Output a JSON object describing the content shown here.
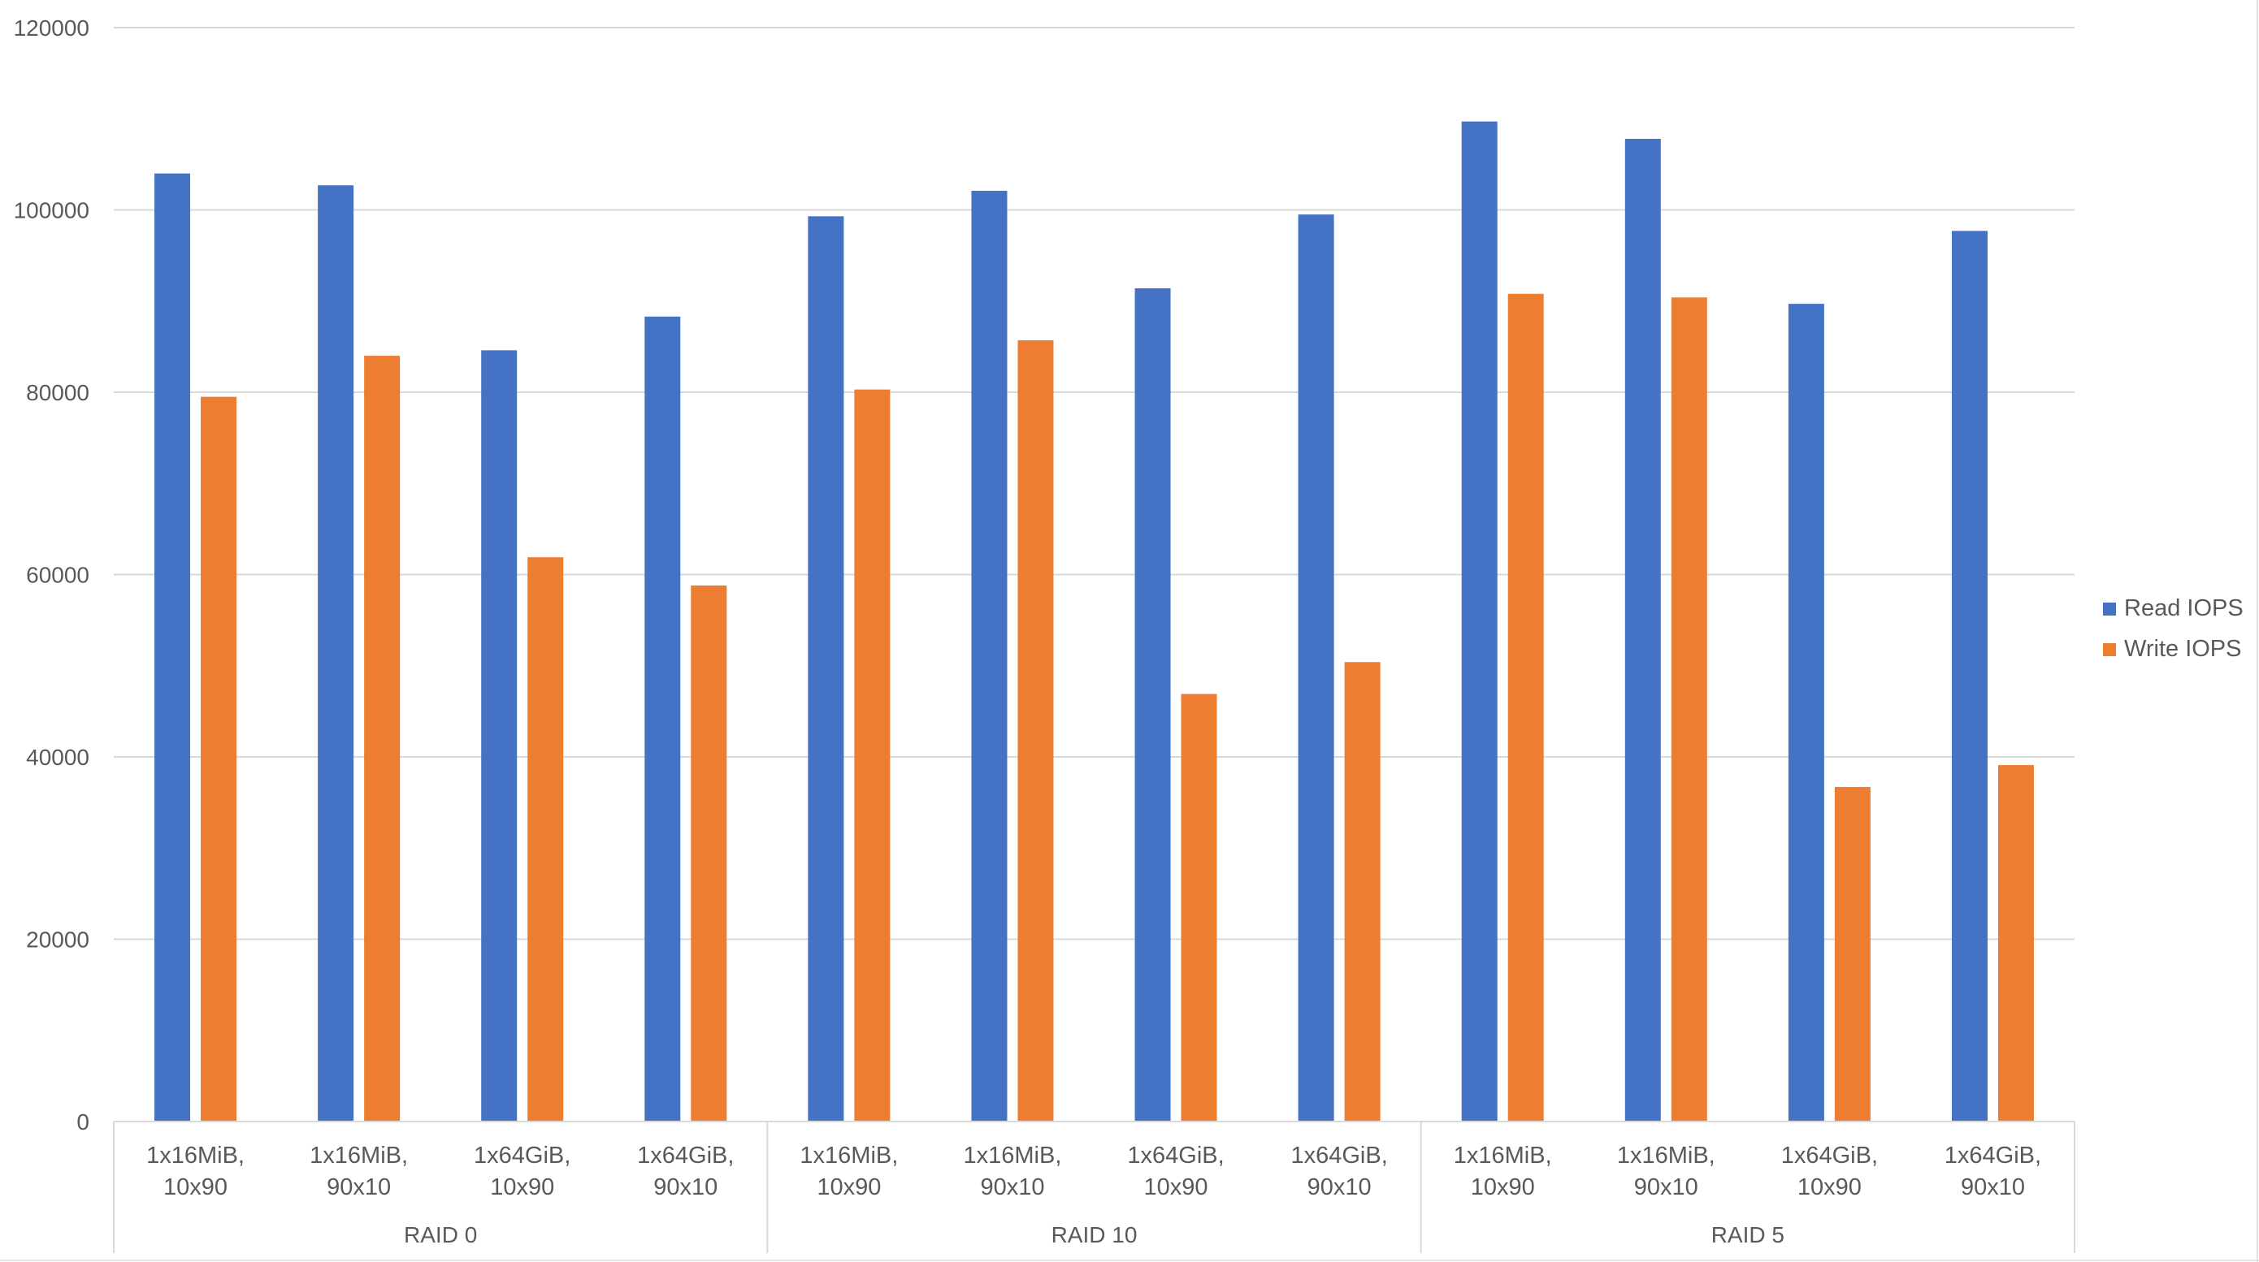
{
  "chart_data": {
    "type": "bar",
    "y_ticks": [
      "0",
      "20000",
      "40000",
      "60000",
      "80000",
      "100000",
      "120000"
    ],
    "ylim": [
      0,
      120000
    ],
    "grid": true,
    "legend_position": "right",
    "groups": [
      {
        "label": "RAID 0",
        "categories": [
          [
            "1x16MiB,",
            "10x90"
          ],
          [
            "1x16MiB,",
            "90x10"
          ],
          [
            "1x64GiB,",
            "10x90"
          ],
          [
            "1x64GiB,",
            "90x10"
          ]
        ]
      },
      {
        "label": "RAID 10",
        "categories": [
          [
            "1x16MiB,",
            "10x90"
          ],
          [
            "1x16MiB,",
            "90x10"
          ],
          [
            "1x64GiB,",
            "10x90"
          ],
          [
            "1x64GiB,",
            "90x10"
          ]
        ]
      },
      {
        "label": "RAID 5",
        "categories": [
          [
            "1x16MiB,",
            "10x90"
          ],
          [
            "1x16MiB,",
            "90x10"
          ],
          [
            "1x64GiB,",
            "10x90"
          ],
          [
            "1x64GiB,",
            "90x10"
          ]
        ]
      }
    ],
    "series": [
      {
        "name": "Read IOPS",
        "color": "#4472c4",
        "values": [
          104000,
          102700,
          84600,
          88300,
          99300,
          102100,
          91400,
          99500,
          109700,
          107800,
          89700,
          97700
        ]
      },
      {
        "name": "Write IOPS",
        "color": "#ed7d31",
        "values": [
          79500,
          84000,
          61900,
          58800,
          80300,
          85700,
          46900,
          50400,
          90800,
          90400,
          36700,
          39100
        ]
      }
    ]
  }
}
